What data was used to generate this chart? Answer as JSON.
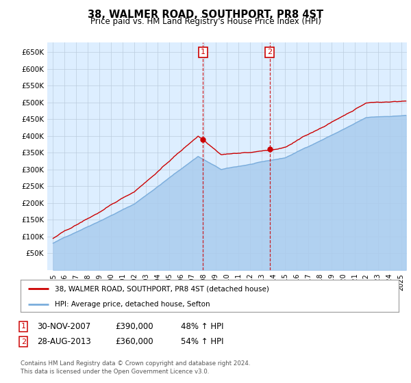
{
  "title": "38, WALMER ROAD, SOUTHPORT, PR8 4ST",
  "subtitle": "Price paid vs. HM Land Registry's House Price Index (HPI)",
  "ylabel_ticks": [
    "£50K",
    "£100K",
    "£150K",
    "£200K",
    "£250K",
    "£300K",
    "£350K",
    "£400K",
    "£450K",
    "£500K",
    "£550K",
    "£600K",
    "£650K"
  ],
  "ytick_values": [
    50000,
    100000,
    150000,
    200000,
    250000,
    300000,
    350000,
    400000,
    450000,
    500000,
    550000,
    600000,
    650000
  ],
  "ylim": [
    0,
    680000
  ],
  "xlim_start": 1994.5,
  "xlim_end": 2025.5,
  "sale1_date": 2007.917,
  "sale1_price": 390000,
  "sale1_label": "1",
  "sale2_date": 2013.667,
  "sale2_price": 360000,
  "sale2_label": "2",
  "legend_line1": "38, WALMER ROAD, SOUTHPORT, PR8 4ST (detached house)",
  "legend_line2": "HPI: Average price, detached house, Sefton",
  "sale1_row": "30-NOV-2007",
  "sale1_price_str": "£390,000",
  "sale1_hpi": "48% ↑ HPI",
  "sale2_row": "28-AUG-2013",
  "sale2_price_str": "£360,000",
  "sale2_hpi": "54% ↑ HPI",
  "footer1": "Contains HM Land Registry data © Crown copyright and database right 2024.",
  "footer2": "This data is licensed under the Open Government Licence v3.0.",
  "red_color": "#cc0000",
  "blue_color": "#7aaddc",
  "blue_fill": "#aaccee",
  "bg_color": "#ddeeff",
  "plot_bg": "#ffffff",
  "grid_color": "#bbccdd"
}
